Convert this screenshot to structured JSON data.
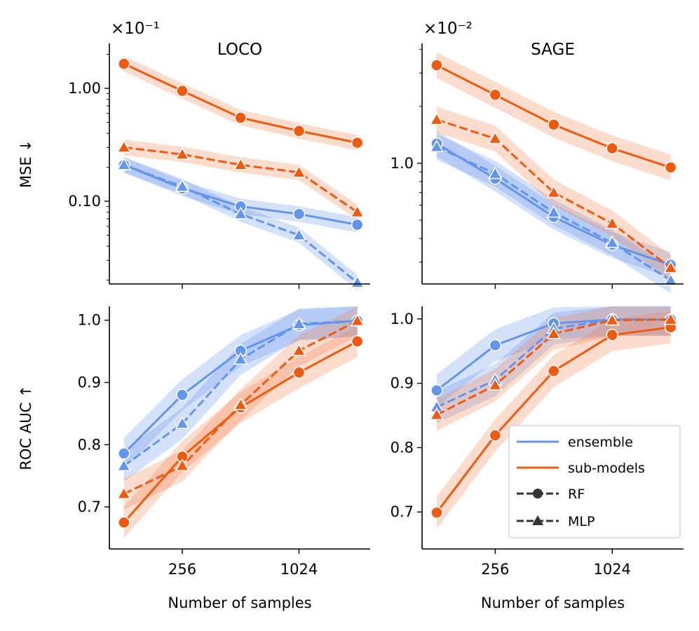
{
  "colors": {
    "ensemble": "#6495ED",
    "submodels": "#F05A0F",
    "band_ensemble": "#6495ED",
    "band_submodels": "#F5824B"
  },
  "legend": {
    "ensemble": "ensemble",
    "submodels": "sub-models",
    "rf": "RF",
    "mlp": "MLP"
  },
  "x_axis": {
    "label": "Number of samples",
    "tick_labels": [
      "256",
      "1024"
    ],
    "tick_values": [
      256,
      1024
    ]
  },
  "chart_data": [
    {
      "type": "line",
      "panel": "LOCO-MSE",
      "title": "LOCO",
      "ylabel": "MSE  ↓",
      "yscale": "log",
      "multiplier": "×10⁻¹",
      "x": [
        128,
        256,
        512,
        1024,
        2048
      ],
      "ylim": [
        0.0185,
        2.5
      ],
      "yticks": [
        0.1,
        1.0
      ],
      "ytick_labels": [
        "0.10",
        "1.00"
      ],
      "series": [
        {
          "name": "ensemble RF",
          "values": [
            0.21,
            0.13,
            0.09,
            0.077,
            0.062
          ]
        },
        {
          "name": "ensemble MLP",
          "values": [
            0.21,
            0.135,
            0.077,
            0.05,
            0.019
          ]
        },
        {
          "name": "sub-models RF",
          "values": [
            1.65,
            0.95,
            0.55,
            0.42,
            0.33
          ]
        },
        {
          "name": "sub-models MLP",
          "values": [
            0.3,
            0.26,
            0.21,
            0.18,
            0.08
          ]
        }
      ]
    },
    {
      "type": "line",
      "panel": "SAGE-MSE",
      "title": "SAGE",
      "ylabel": "",
      "yscale": "log",
      "multiplier": "×10⁻²",
      "x": [
        128,
        256,
        512,
        1024,
        2048
      ],
      "ylim": [
        0.23,
        4.3
      ],
      "yticks": [
        1.0
      ],
      "ytick_labels": [
        "1.0"
      ],
      "series": [
        {
          "name": "ensemble RF",
          "values": [
            1.27,
            0.83,
            0.52,
            0.37,
            0.29
          ]
        },
        {
          "name": "ensemble MLP",
          "values": [
            1.22,
            0.88,
            0.55,
            0.38,
            0.24
          ]
        },
        {
          "name": "sub-models RF",
          "values": [
            3.3,
            2.3,
            1.6,
            1.2,
            0.95
          ]
        },
        {
          "name": "sub-models MLP",
          "values": [
            1.7,
            1.35,
            0.7,
            0.48,
            0.28
          ]
        }
      ]
    },
    {
      "type": "line",
      "panel": "LOCO-AUC",
      "title": "",
      "ylabel": "ROC AUC  ↑",
      "yscale": "linear",
      "x": [
        128,
        256,
        512,
        1024,
        2048
      ],
      "ylim": [
        0.6325,
        1.0222
      ],
      "yticks": [
        0.7,
        0.8,
        0.9,
        1.0
      ],
      "ytick_labels": [
        "0.7",
        "0.8",
        "0.9",
        "1.0"
      ],
      "series": [
        {
          "name": "ensemble RF",
          "values": [
            0.786,
            0.88,
            0.951,
            0.992,
            0.999
          ]
        },
        {
          "name": "ensemble MLP",
          "values": [
            0.766,
            0.834,
            0.937,
            0.994,
            0.999
          ]
        },
        {
          "name": "sub-models RF",
          "values": [
            0.675,
            0.781,
            0.86,
            0.916,
            0.966
          ]
        },
        {
          "name": "sub-models MLP",
          "values": [
            0.721,
            0.766,
            0.864,
            0.951,
            0.999
          ]
        }
      ]
    },
    {
      "type": "line",
      "panel": "SAGE-AUC",
      "title": "",
      "ylabel": "",
      "yscale": "linear",
      "x": [
        128,
        256,
        512,
        1024,
        2048
      ],
      "ylim": [
        0.6425,
        1.0195
      ],
      "yticks": [
        0.7,
        0.8,
        0.9,
        1.0
      ],
      "ytick_labels": [
        "0.7",
        "0.8",
        "0.9",
        "1.0"
      ],
      "series": [
        {
          "name": "ensemble RF",
          "values": [
            0.889,
            0.959,
            0.993,
            0.999,
            0.999
          ]
        },
        {
          "name": "ensemble MLP",
          "values": [
            0.863,
            0.905,
            0.985,
            0.999,
            0.999
          ]
        },
        {
          "name": "sub-models RF",
          "values": [
            0.699,
            0.819,
            0.919,
            0.975,
            0.987
          ]
        },
        {
          "name": "sub-models MLP",
          "values": [
            0.851,
            0.897,
            0.977,
            0.998,
            0.999
          ]
        }
      ]
    }
  ]
}
